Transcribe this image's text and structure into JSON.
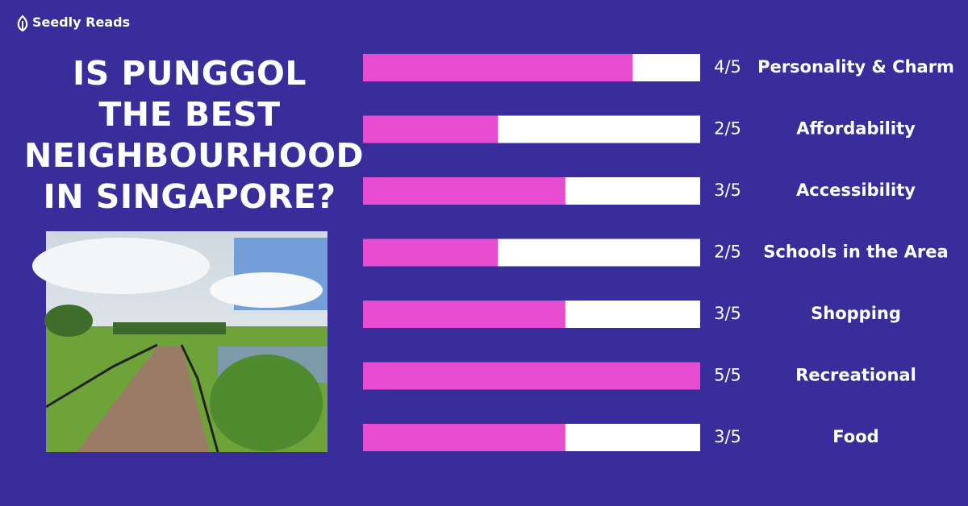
{
  "brand": "Seedly Reads",
  "chart_data": {
    "type": "bar",
    "orientation": "horizontal",
    "title": "IS PUNGGOL\nTHE BEST\nNEIGHBOURHOOD\nIN SINGAPORE?",
    "categories": [
      "Personality & Charm",
      "Affordability",
      "Accessibility",
      "Schools in the Area",
      "Shopping",
      "Recreational",
      "Food"
    ],
    "values": [
      4,
      2,
      3,
      2,
      3,
      5,
      3
    ],
    "value_labels": [
      "4/5",
      "2/5",
      "3/5",
      "2/5",
      "3/5",
      "5/5",
      "3/5"
    ],
    "xlim": [
      0,
      5
    ],
    "color": "#e54ccf",
    "track_color": "#ffffff"
  }
}
